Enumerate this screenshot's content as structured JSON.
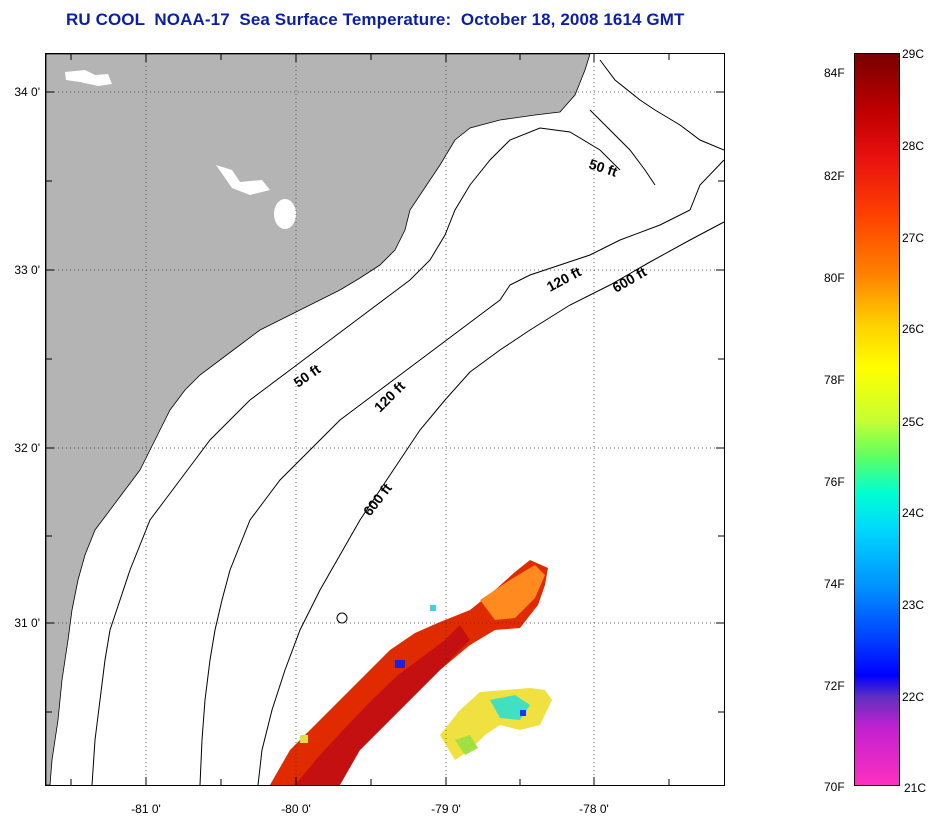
{
  "title": "RU COOL  NOAA-17  Sea Surface Temperature:  October 18, 2008 1614 GMT",
  "lat_labels": [
    "34 0'",
    "33 0'",
    "32 0'",
    "31 0'"
  ],
  "lon_labels": [
    "-81 0'",
    "-80 0'",
    "-79 0'",
    "-78 0'"
  ],
  "contour_labels": {
    "c50_north": "50 ft",
    "c50_south": "50 ft",
    "c120_north": "120 ft",
    "c120_south": "120 ft",
    "c600_north": "600 ft",
    "c600_south": "600 ft"
  },
  "colorbar": {
    "fahrenheit": [
      "84F",
      "82F",
      "80F",
      "78F",
      "76F",
      "74F",
      "72F",
      "70F"
    ],
    "celsius": [
      "29C",
      "28C",
      "27C",
      "26C",
      "25C",
      "24C",
      "23C",
      "22C",
      "21C"
    ]
  },
  "colors": {
    "land": "#b4b4b4",
    "title": "#0a1fa6",
    "warm_water": "#e02a00",
    "hot_water": "#c41010"
  }
}
